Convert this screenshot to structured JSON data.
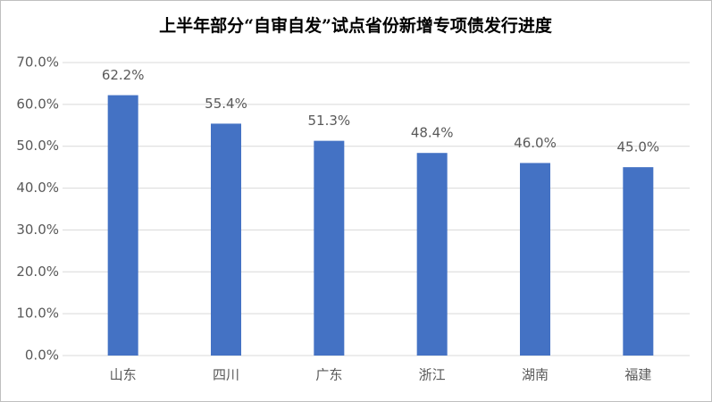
{
  "chart_data": {
    "type": "bar",
    "title": "上半年部分“自审自发”试点省份新增专项债发行进度",
    "categories": [
      "山东",
      "四川",
      "广东",
      "浙江",
      "湖南",
      "福建"
    ],
    "values": [
      62.2,
      55.4,
      51.3,
      48.4,
      46.0,
      45.0
    ],
    "value_labels": [
      "62.2%",
      "55.4%",
      "51.3%",
      "48.4%",
      "46.0%",
      "45.0%"
    ],
    "color": "#4472c4",
    "ylim": [
      0,
      70
    ],
    "yticks": [
      {
        "value": 0,
        "label": "0.0%"
      },
      {
        "value": 10,
        "label": "10.0%"
      },
      {
        "value": 20,
        "label": "20.0%"
      },
      {
        "value": 30,
        "label": "30.0%"
      },
      {
        "value": 40,
        "label": "40.0%"
      },
      {
        "value": 50,
        "label": "50.0%"
      },
      {
        "value": 60,
        "label": "60.0%"
      },
      {
        "value": 70,
        "label": "70.0%"
      }
    ],
    "grid": true
  }
}
